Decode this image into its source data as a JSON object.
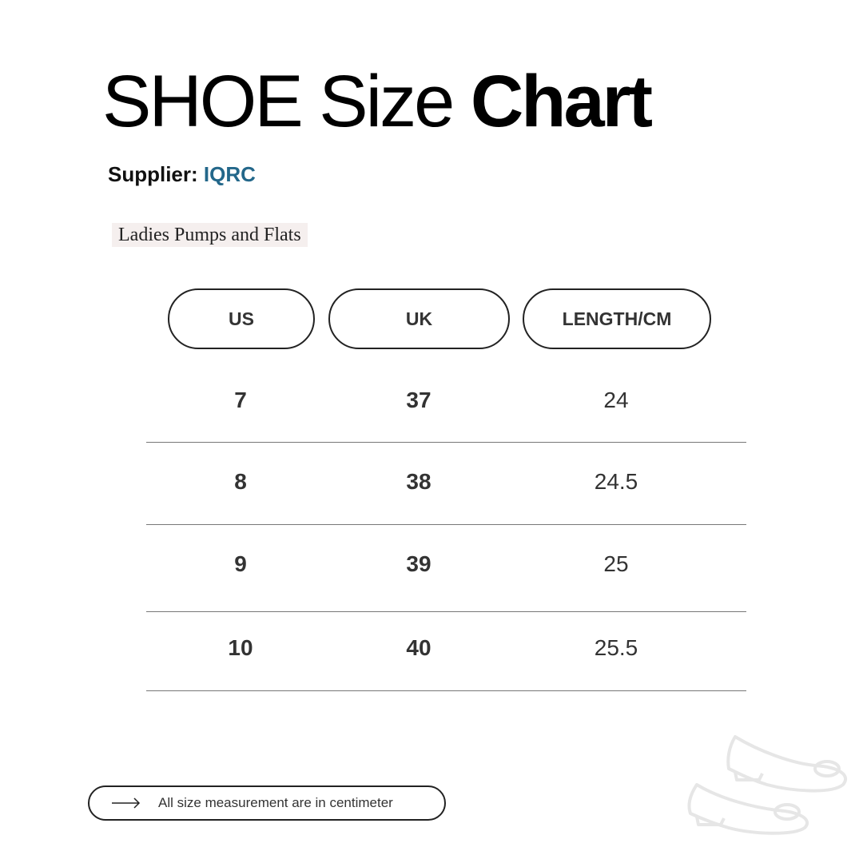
{
  "title": {
    "light": "SHOE Size ",
    "bold": "Chart"
  },
  "supplier": {
    "label": "Supplier: ",
    "name": "IQRC",
    "brand_color": "#23678a"
  },
  "category": "Ladies Pumps and Flats",
  "table": {
    "headers": [
      "US",
      "UK",
      "LENGTH/CM"
    ],
    "rows": [
      [
        "7",
        "37",
        "24"
      ],
      [
        "8",
        "38",
        "24.5"
      ],
      [
        "9",
        "39",
        "25"
      ],
      [
        "10",
        "40",
        "25.5"
      ]
    ]
  },
  "note": {
    "icon": "arrow-right-icon",
    "text": "All size measurement are in centimeter"
  },
  "decoration": {
    "icon": "shoes-icon"
  }
}
